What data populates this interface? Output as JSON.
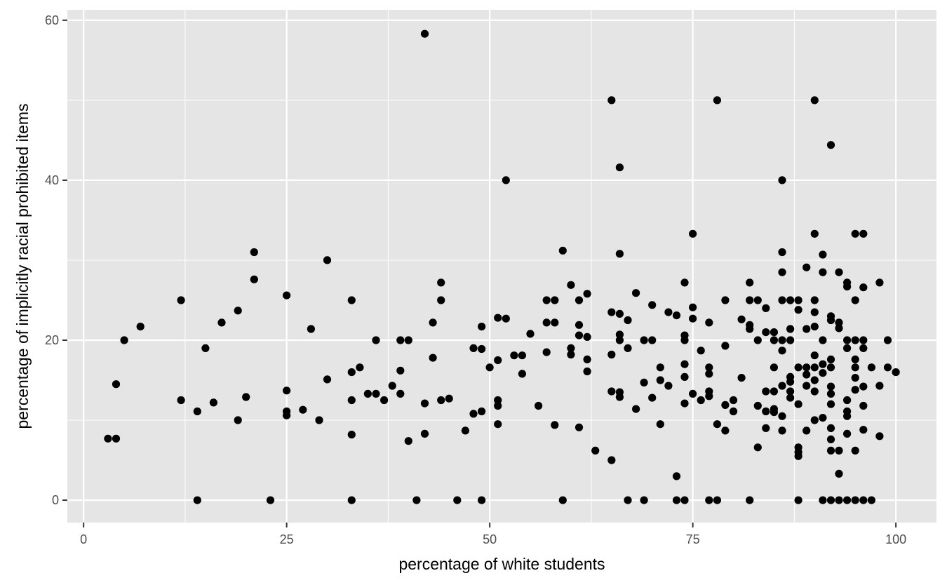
{
  "chart_data": {
    "type": "scatter",
    "title": "",
    "xlabel": "percentage of white students",
    "ylabel": "percentage of implicitly racial prohibited items",
    "xlim": [
      -2,
      105
    ],
    "ylim": [
      -2.8,
      61.3
    ],
    "x_ticks": [
      0,
      25,
      50,
      75,
      100
    ],
    "y_ticks": [
      0,
      20,
      40,
      60
    ],
    "x_tick_labels": [
      "0",
      "25",
      "50",
      "75",
      "100"
    ],
    "y_tick_labels": [
      "0",
      "20",
      "40",
      "60"
    ],
    "grid": true,
    "legend": "none",
    "panel_color": "#e5e5e5",
    "point_color": "#000000",
    "points": [
      [
        3,
        7.7
      ],
      [
        4,
        7.7
      ],
      [
        4,
        14.5
      ],
      [
        5,
        20
      ],
      [
        7,
        21.7
      ],
      [
        12,
        25
      ],
      [
        12,
        12.5
      ],
      [
        14,
        11.1
      ],
      [
        14,
        0
      ],
      [
        15,
        19
      ],
      [
        16,
        12.2
      ],
      [
        17,
        22.2
      ],
      [
        19,
        23.7
      ],
      [
        19,
        10
      ],
      [
        20,
        12.9
      ],
      [
        21,
        31
      ],
      [
        21,
        27.6
      ],
      [
        23,
        0
      ],
      [
        25,
        25.6
      ],
      [
        25,
        13.7
      ],
      [
        25,
        11.1
      ],
      [
        25,
        10.6
      ],
      [
        27,
        11.3
      ],
      [
        28,
        21.4
      ],
      [
        29,
        10
      ],
      [
        30,
        30
      ],
      [
        30,
        15.1
      ],
      [
        33,
        25
      ],
      [
        33,
        16
      ],
      [
        33,
        12.5
      ],
      [
        33,
        8.2
      ],
      [
        33,
        0
      ],
      [
        34,
        16.6
      ],
      [
        35,
        13.3
      ],
      [
        36,
        20
      ],
      [
        36,
        13.3
      ],
      [
        37,
        12.5
      ],
      [
        38,
        14.3
      ],
      [
        39,
        20
      ],
      [
        39,
        16.2
      ],
      [
        39,
        13.3
      ],
      [
        40,
        20
      ],
      [
        40,
        7.4
      ],
      [
        41,
        0
      ],
      [
        42,
        58.3
      ],
      [
        42,
        12.1
      ],
      [
        42,
        8.3
      ],
      [
        43,
        22.2
      ],
      [
        43,
        17.8
      ],
      [
        44,
        27.2
      ],
      [
        44,
        25
      ],
      [
        44,
        12.5
      ],
      [
        45,
        12.7
      ],
      [
        46,
        0
      ],
      [
        47,
        8.7
      ],
      [
        48,
        19
      ],
      [
        48,
        10.8
      ],
      [
        49,
        21.7
      ],
      [
        49,
        18.9
      ],
      [
        49,
        11.1
      ],
      [
        49,
        0
      ],
      [
        50,
        16.6
      ],
      [
        51,
        22.8
      ],
      [
        51,
        17.5
      ],
      [
        51,
        12.5
      ],
      [
        51,
        11.8
      ],
      [
        51,
        9.5
      ],
      [
        52,
        40
      ],
      [
        52,
        22.7
      ],
      [
        53,
        18.1
      ],
      [
        54,
        18.1
      ],
      [
        54,
        15.8
      ],
      [
        55,
        20.8
      ],
      [
        56,
        11.8
      ],
      [
        57,
        25
      ],
      [
        57,
        22.2
      ],
      [
        57,
        18.5
      ],
      [
        58,
        25
      ],
      [
        58,
        22.2
      ],
      [
        58,
        9.4
      ],
      [
        59,
        31.2
      ],
      [
        59,
        0
      ],
      [
        60,
        26.9
      ],
      [
        60,
        19
      ],
      [
        60,
        18.2
      ],
      [
        61,
        25
      ],
      [
        61,
        21.9
      ],
      [
        61,
        20.6
      ],
      [
        61,
        9.1
      ],
      [
        62,
        25.8
      ],
      [
        62,
        20.4
      ],
      [
        62,
        17.6
      ],
      [
        62,
        16.1
      ],
      [
        63,
        6.2
      ],
      [
        65,
        50
      ],
      [
        65,
        23.5
      ],
      [
        65,
        18.2
      ],
      [
        65,
        13.6
      ],
      [
        65,
        5
      ],
      [
        66,
        41.6
      ],
      [
        66,
        30.8
      ],
      [
        66,
        23.3
      ],
      [
        66,
        20.7
      ],
      [
        66,
        20
      ],
      [
        66,
        13.5
      ],
      [
        66,
        12.9
      ],
      [
        67,
        22.5
      ],
      [
        67,
        19
      ],
      [
        67,
        0
      ],
      [
        68,
        25.9
      ],
      [
        68,
        11.4
      ],
      [
        69,
        20
      ],
      [
        69,
        14.7
      ],
      [
        69,
        0
      ],
      [
        70,
        24.4
      ],
      [
        70,
        20
      ],
      [
        70,
        12.8
      ],
      [
        71,
        16.6
      ],
      [
        71,
        15
      ],
      [
        71,
        9.5
      ],
      [
        72,
        23.5
      ],
      [
        72,
        14.3
      ],
      [
        73,
        23.1
      ],
      [
        73,
        3
      ],
      [
        73,
        0
      ],
      [
        74,
        27.2
      ],
      [
        74,
        20.6
      ],
      [
        74,
        20
      ],
      [
        74,
        17
      ],
      [
        74,
        15.4
      ],
      [
        74,
        12.1
      ],
      [
        74,
        0
      ],
      [
        75,
        33.3
      ],
      [
        75,
        24.1
      ],
      [
        75,
        22.7
      ],
      [
        75,
        13.3
      ],
      [
        76,
        18.7
      ],
      [
        76,
        12.5
      ],
      [
        77,
        22.2
      ],
      [
        77,
        16.6
      ],
      [
        77,
        15.8
      ],
      [
        77,
        13.6
      ],
      [
        77,
        13
      ],
      [
        77,
        0
      ],
      [
        78,
        50
      ],
      [
        78,
        9.5
      ],
      [
        78,
        0
      ],
      [
        79,
        25
      ],
      [
        79,
        19.3
      ],
      [
        79,
        11.9
      ],
      [
        79,
        8.7
      ],
      [
        80,
        12.5
      ],
      [
        80,
        11.1
      ],
      [
        81,
        22.6
      ],
      [
        81,
        15.3
      ],
      [
        82,
        27.2
      ],
      [
        82,
        25
      ],
      [
        82,
        21.9
      ],
      [
        82,
        21.4
      ],
      [
        82,
        0
      ],
      [
        83,
        25
      ],
      [
        83,
        20
      ],
      [
        83,
        11.8
      ],
      [
        83,
        6.6
      ],
      [
        84,
        24
      ],
      [
        84,
        21
      ],
      [
        84,
        13.6
      ],
      [
        84,
        11.1
      ],
      [
        84,
        9
      ],
      [
        85,
        21
      ],
      [
        85,
        20
      ],
      [
        85,
        16.6
      ],
      [
        85,
        13.6
      ],
      [
        85,
        11.4
      ],
      [
        85,
        11
      ],
      [
        86,
        40
      ],
      [
        86,
        31
      ],
      [
        86,
        28.5
      ],
      [
        86,
        25
      ],
      [
        86,
        20
      ],
      [
        86,
        18.7
      ],
      [
        86,
        14.3
      ],
      [
        86,
        10.5
      ],
      [
        86,
        8.7
      ],
      [
        87,
        25
      ],
      [
        87,
        21.4
      ],
      [
        87,
        20
      ],
      [
        87,
        15.4
      ],
      [
        87,
        14.8
      ],
      [
        87,
        13.6
      ],
      [
        87,
        12.8
      ],
      [
        88,
        25
      ],
      [
        88,
        23.8
      ],
      [
        88,
        16.6
      ],
      [
        88,
        12
      ],
      [
        88,
        6.6
      ],
      [
        88,
        6
      ],
      [
        88,
        5.5
      ],
      [
        88,
        0
      ],
      [
        89,
        29.1
      ],
      [
        89,
        21.4
      ],
      [
        89,
        16.6
      ],
      [
        89,
        15.7
      ],
      [
        89,
        14.3
      ],
      [
        89,
        8.7
      ],
      [
        90,
        50
      ],
      [
        90,
        33.3
      ],
      [
        90,
        25
      ],
      [
        90,
        23.5
      ],
      [
        90,
        21.7
      ],
      [
        90,
        18.1
      ],
      [
        90,
        16.6
      ],
      [
        90,
        15
      ],
      [
        90,
        13.6
      ],
      [
        90,
        10
      ],
      [
        91,
        30.7
      ],
      [
        91,
        28.5
      ],
      [
        91,
        20
      ],
      [
        91,
        17
      ],
      [
        91,
        15.9
      ],
      [
        91,
        10.3
      ],
      [
        91,
        0
      ],
      [
        92,
        44.4
      ],
      [
        92,
        23
      ],
      [
        92,
        22.5
      ],
      [
        92,
        17.6
      ],
      [
        92,
        16.6
      ],
      [
        92,
        14.2
      ],
      [
        92,
        13.3
      ],
      [
        92,
        12
      ],
      [
        92,
        9
      ],
      [
        92,
        7.6
      ],
      [
        92,
        6.2
      ],
      [
        92,
        0
      ],
      [
        93,
        28.5
      ],
      [
        93,
        22.2
      ],
      [
        93,
        21.5
      ],
      [
        93,
        6.2
      ],
      [
        93,
        3.3
      ],
      [
        93,
        0
      ],
      [
        94,
        27.2
      ],
      [
        94,
        26.7
      ],
      [
        94,
        20
      ],
      [
        94,
        19
      ],
      [
        94,
        12.5
      ],
      [
        94,
        11.1
      ],
      [
        94,
        10.5
      ],
      [
        94,
        8.3
      ],
      [
        94,
        0
      ],
      [
        95,
        33.3
      ],
      [
        95,
        25
      ],
      [
        95,
        20
      ],
      [
        95,
        17.6
      ],
      [
        95,
        16.6
      ],
      [
        95,
        15.3
      ],
      [
        95,
        13.8
      ],
      [
        95,
        6.2
      ],
      [
        95,
        0
      ],
      [
        96,
        33.3
      ],
      [
        96,
        26.6
      ],
      [
        96,
        20
      ],
      [
        96,
        19
      ],
      [
        96,
        14.2
      ],
      [
        96,
        11.8
      ],
      [
        96,
        8.8
      ],
      [
        96,
        0
      ],
      [
        97,
        16.6
      ],
      [
        97,
        0
      ],
      [
        98,
        27.2
      ],
      [
        98,
        14.3
      ],
      [
        98,
        8
      ],
      [
        99,
        20
      ],
      [
        99,
        16.6
      ],
      [
        100,
        16
      ]
    ]
  }
}
